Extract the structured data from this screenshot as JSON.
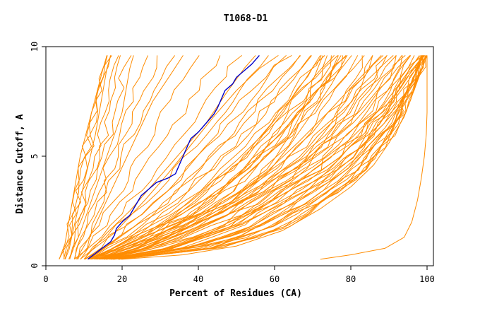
{
  "chart_data": {
    "type": "line",
    "title": "T1068-D1",
    "xlabel": "Percent of Residues (CA)",
    "ylabel": "Distance Cutoff, A",
    "xlim": [
      0,
      100
    ],
    "ylim": [
      0,
      10
    ],
    "x_ticks": [
      0,
      20,
      40,
      60,
      80,
      100
    ],
    "y_ticks": [
      0,
      5,
      10
    ],
    "grid": false,
    "colors": {
      "background": "#ffffff",
      "other_models": "#ff8c00",
      "highlight": "#0000cc"
    },
    "highlight_series": {
      "points": [
        [
          11,
          0.3
        ],
        [
          14,
          0.7
        ],
        [
          17,
          1.1
        ],
        [
          18,
          1.4
        ],
        [
          18.5,
          1.7
        ],
        [
          20,
          2
        ],
        [
          22,
          2.3
        ],
        [
          23,
          2.6
        ],
        [
          24,
          2.9
        ],
        [
          25,
          3.2
        ],
        [
          27,
          3.5
        ],
        [
          29,
          3.8
        ],
        [
          32,
          4
        ],
        [
          34,
          4.2
        ],
        [
          35,
          4.6
        ],
        [
          36,
          5
        ],
        [
          37,
          5.4
        ],
        [
          38,
          5.8
        ],
        [
          40,
          6.1
        ],
        [
          42,
          6.5
        ],
        [
          44,
          6.9
        ],
        [
          45,
          7.2
        ],
        [
          46,
          7.6
        ],
        [
          47,
          8
        ],
        [
          49,
          8.3
        ],
        [
          50,
          8.6
        ],
        [
          52,
          8.9
        ],
        [
          54,
          9.2
        ],
        [
          56,
          9.6
        ]
      ]
    },
    "anchor_curves": [
      [
        [
          3.5,
          0.3
        ],
        [
          5,
          1
        ],
        [
          6,
          2
        ],
        [
          7,
          3
        ],
        [
          8,
          4
        ],
        [
          9,
          5
        ],
        [
          10.5,
          6
        ],
        [
          12,
          7
        ],
        [
          13.5,
          8
        ],
        [
          15,
          9
        ],
        [
          16,
          9.6
        ]
      ],
      [
        [
          5,
          0.3
        ],
        [
          7,
          1.5
        ],
        [
          9,
          3
        ],
        [
          11,
          4.5
        ],
        [
          13,
          6
        ],
        [
          14.5,
          7.5
        ],
        [
          16,
          9
        ],
        [
          17,
          9.6
        ]
      ],
      [
        [
          6,
          0.3
        ],
        [
          9,
          1.5
        ],
        [
          12,
          3
        ],
        [
          14,
          4
        ],
        [
          16,
          5
        ],
        [
          18,
          6
        ],
        [
          20,
          7
        ],
        [
          21,
          8
        ],
        [
          22,
          9
        ],
        [
          23,
          9.6
        ]
      ],
      [
        [
          8,
          0.3
        ],
        [
          12,
          1.5
        ],
        [
          16,
          3
        ],
        [
          20,
          4.5
        ],
        [
          24,
          6
        ],
        [
          28,
          7.5
        ],
        [
          33,
          8.8
        ],
        [
          36,
          9.6
        ]
      ],
      [
        [
          10,
          0.3
        ],
        [
          16,
          1.5
        ],
        [
          22,
          2.5
        ],
        [
          27,
          3.5
        ],
        [
          32,
          4.5
        ],
        [
          37,
          5.5
        ],
        [
          42,
          6.5
        ],
        [
          47,
          7.8
        ],
        [
          52,
          9
        ],
        [
          55,
          9.6
        ]
      ],
      [
        [
          12,
          0.3
        ],
        [
          22,
          1
        ],
        [
          32,
          1.8
        ],
        [
          42,
          2.5
        ],
        [
          50,
          3.3
        ],
        [
          58,
          4.3
        ],
        [
          66,
          5.6
        ],
        [
          74,
          7
        ],
        [
          82,
          8.5
        ],
        [
          88,
          9.6
        ]
      ],
      [
        [
          14,
          0.3
        ],
        [
          26,
          0.8
        ],
        [
          38,
          1.6
        ],
        [
          50,
          2.5
        ],
        [
          60,
          3.5
        ],
        [
          70,
          4.5
        ],
        [
          80,
          5.8
        ],
        [
          88,
          7.2
        ],
        [
          94,
          8.6
        ],
        [
          98,
          9.6
        ]
      ],
      [
        [
          17,
          0.3
        ],
        [
          30,
          0.6
        ],
        [
          42,
          1
        ],
        [
          54,
          1.8
        ],
        [
          64,
          2.8
        ],
        [
          74,
          3.8
        ],
        [
          82,
          5
        ],
        [
          89,
          6.3
        ],
        [
          94,
          7.6
        ],
        [
          97,
          8.8
        ],
        [
          99,
          9.6
        ]
      ],
      [
        [
          20,
          0.3
        ],
        [
          36,
          0.5
        ],
        [
          50,
          0.9
        ],
        [
          62,
          1.6
        ],
        [
          72,
          2.6
        ],
        [
          80,
          3.6
        ],
        [
          86,
          4.6
        ],
        [
          90,
          5.6
        ],
        [
          94,
          6.8
        ],
        [
          97,
          8.2
        ],
        [
          100,
          9.6
        ]
      ],
      [
        [
          15,
          0.3
        ],
        [
          28,
          0.9
        ],
        [
          40,
          1.8
        ],
        [
          50,
          3
        ],
        [
          58,
          4.2
        ],
        [
          64,
          5.5
        ],
        [
          70,
          7
        ],
        [
          75,
          8.3
        ],
        [
          79,
          9.6
        ]
      ],
      [
        [
          13,
          0.3
        ],
        [
          24,
          1.2
        ],
        [
          34,
          2.4
        ],
        [
          42,
          3.6
        ],
        [
          50,
          4.8
        ],
        [
          57,
          6
        ],
        [
          63,
          7.3
        ],
        [
          68,
          8.5
        ],
        [
          72,
          9.6
        ]
      ],
      [
        [
          9,
          0.3
        ],
        [
          18,
          1.5
        ],
        [
          26,
          3
        ],
        [
          32,
          4.2
        ],
        [
          38,
          5.5
        ],
        [
          44,
          6.8
        ],
        [
          50,
          8
        ],
        [
          56,
          9
        ],
        [
          61,
          9.6
        ]
      ]
    ],
    "outlier_series": {
      "points": [
        [
          72,
          0.3
        ],
        [
          80,
          0.5
        ],
        [
          89,
          0.8
        ],
        [
          94,
          1.3
        ],
        [
          96,
          2
        ],
        [
          97.5,
          3
        ],
        [
          98.5,
          4
        ],
        [
          99.3,
          5
        ],
        [
          99.8,
          6
        ],
        [
          100,
          7
        ],
        [
          100,
          8
        ],
        [
          100,
          9
        ],
        [
          100,
          9.6
        ]
      ]
    }
  }
}
